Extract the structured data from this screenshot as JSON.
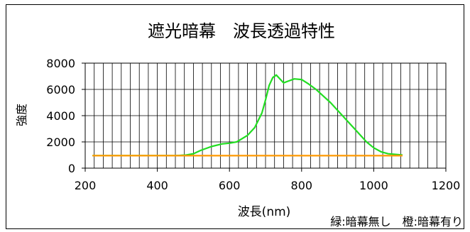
{
  "chart_data": {
    "type": "line",
    "title": "遮光暗幕　波長透過特性",
    "xlabel": "波長(nm)",
    "ylabel": "強度",
    "xlim": [
      200,
      1200
    ],
    "ylim": [
      0,
      8000
    ],
    "x_ticks": [
      200,
      400,
      600,
      800,
      1000,
      1200
    ],
    "y_ticks": [
      0,
      2000,
      4000,
      6000,
      8000
    ],
    "x_tick_labels": [
      "200",
      "400",
      "600",
      "800",
      "1000",
      "1200"
    ],
    "y_tick_labels": [
      "0",
      "2000",
      "4000",
      "6000",
      "8000"
    ],
    "grid": true,
    "annotation": "緑:暗幕無し　橙:暗幕有り",
    "series": [
      {
        "color": "#22dd22",
        "x": [
          220,
          300,
          400,
          450,
          480,
          500,
          520,
          550,
          580,
          600,
          620,
          650,
          670,
          690,
          700,
          710,
          720,
          730,
          740,
          750,
          760,
          780,
          800,
          820,
          840,
          860,
          880,
          900,
          920,
          940,
          960,
          980,
          1000,
          1020,
          1040,
          1060,
          1080
        ],
        "values": [
          950,
          950,
          950,
          950,
          1000,
          1100,
          1350,
          1650,
          1850,
          1900,
          2000,
          2500,
          3100,
          4200,
          5200,
          6300,
          6900,
          7100,
          6800,
          6500,
          6600,
          6800,
          6750,
          6400,
          6000,
          5500,
          5000,
          4400,
          3800,
          3200,
          2600,
          2000,
          1550,
          1250,
          1100,
          1050,
          1000
        ]
      },
      {
        "color": "#ff9900",
        "x": [
          220,
          300,
          400,
          500,
          600,
          700,
          800,
          900,
          1000,
          1080
        ],
        "values": [
          950,
          950,
          950,
          950,
          950,
          950,
          950,
          950,
          950,
          950
        ]
      }
    ]
  }
}
